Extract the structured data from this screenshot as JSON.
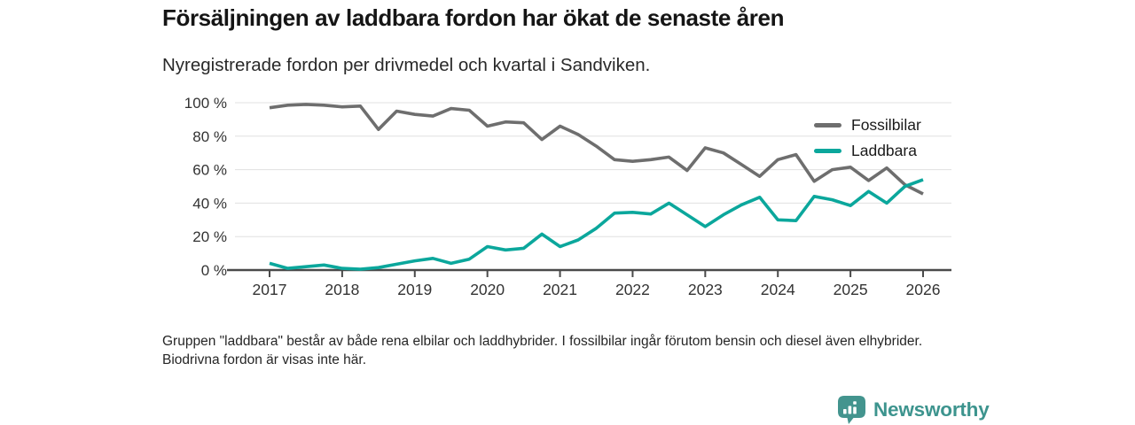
{
  "header": {
    "title": "Försäljningen av laddbara fordon har ökat de senaste åren",
    "subtitle": "Nyregistrerade fordon per drivmedel och kvartal i Sandviken."
  },
  "legend": [
    {
      "label": "Fossilbilar",
      "color": "#6e6e6e"
    },
    {
      "label": "Laddbara",
      "color": "#0ba79c"
    }
  ],
  "footnote": "Gruppen \"laddbara\" består av både rena elbilar och laddhybrider. I fossilbilar ingår förutom bensin och diesel även elhybrider. Biodrivna fordon är visas inte här.",
  "branding": {
    "name": "Newsworthy",
    "text_color": "#3d948e",
    "icon_color": "#43948e",
    "icon": "newsworthy-barchart-pin-icon"
  },
  "chart_data": {
    "type": "line",
    "title": "Försäljningen av laddbara fordon har ökat de senaste åren",
    "subtitle": "Nyregistrerade fordon per drivmedel och kvartal i Sandviken.",
    "x_unit": "quarter",
    "x": [
      "2017 Q1",
      "2017 Q2",
      "2017 Q3",
      "2017 Q4",
      "2018 Q1",
      "2018 Q2",
      "2018 Q3",
      "2018 Q4",
      "2019 Q1",
      "2019 Q2",
      "2019 Q3",
      "2019 Q4",
      "2020 Q1",
      "2020 Q2",
      "2020 Q3",
      "2020 Q4",
      "2021 Q1",
      "2021 Q2",
      "2021 Q3",
      "2021 Q4",
      "2022 Q1",
      "2022 Q2",
      "2022 Q3",
      "2022 Q4",
      "2023 Q1",
      "2023 Q2",
      "2023 Q3",
      "2023 Q4",
      "2024 Q1",
      "2024 Q2",
      "2024 Q3",
      "2024 Q4",
      "2025 Q1",
      "2025 Q2",
      "2025 Q3",
      "2025 Q4",
      "2026 Q1"
    ],
    "series": [
      {
        "name": "Fossilbilar",
        "color": "#6e6e6e",
        "values": [
          97,
          98.5,
          99,
          98.5,
          97.5,
          98,
          84,
          95,
          93,
          92,
          96.5,
          95.5,
          86,
          88.5,
          88,
          78,
          86,
          81,
          74,
          66,
          65,
          66,
          67.5,
          59.5,
          73,
          70,
          63,
          56,
          66,
          69,
          53,
          60,
          61.5,
          53.5,
          61,
          51,
          45.5
        ]
      },
      {
        "name": "Laddbara",
        "color": "#0ba79c",
        "values": [
          4,
          1,
          2,
          3,
          1,
          0.5,
          1.5,
          3.5,
          5.5,
          7,
          4,
          6.5,
          14,
          12,
          13,
          21.5,
          14,
          18,
          25,
          34,
          34.5,
          33.5,
          40,
          33,
          26,
          33,
          39,
          43.5,
          30,
          29.5,
          44,
          42,
          38.5,
          47,
          40,
          50,
          54
        ]
      }
    ],
    "xticks": [
      "2017",
      "2018",
      "2019",
      "2020",
      "2021",
      "2022",
      "2023",
      "2024",
      "2025",
      "2026"
    ],
    "yticks": [
      "0 %",
      "20 %",
      "40 %",
      "60 %",
      "80 %",
      "100 %"
    ],
    "ylim": [
      0,
      100
    ],
    "grid": "horizontal",
    "legend_position": "top-right",
    "axis_color": "#4a4a4a",
    "gridline_color": "#e0e0e0",
    "tick_label_color": "#333333"
  }
}
